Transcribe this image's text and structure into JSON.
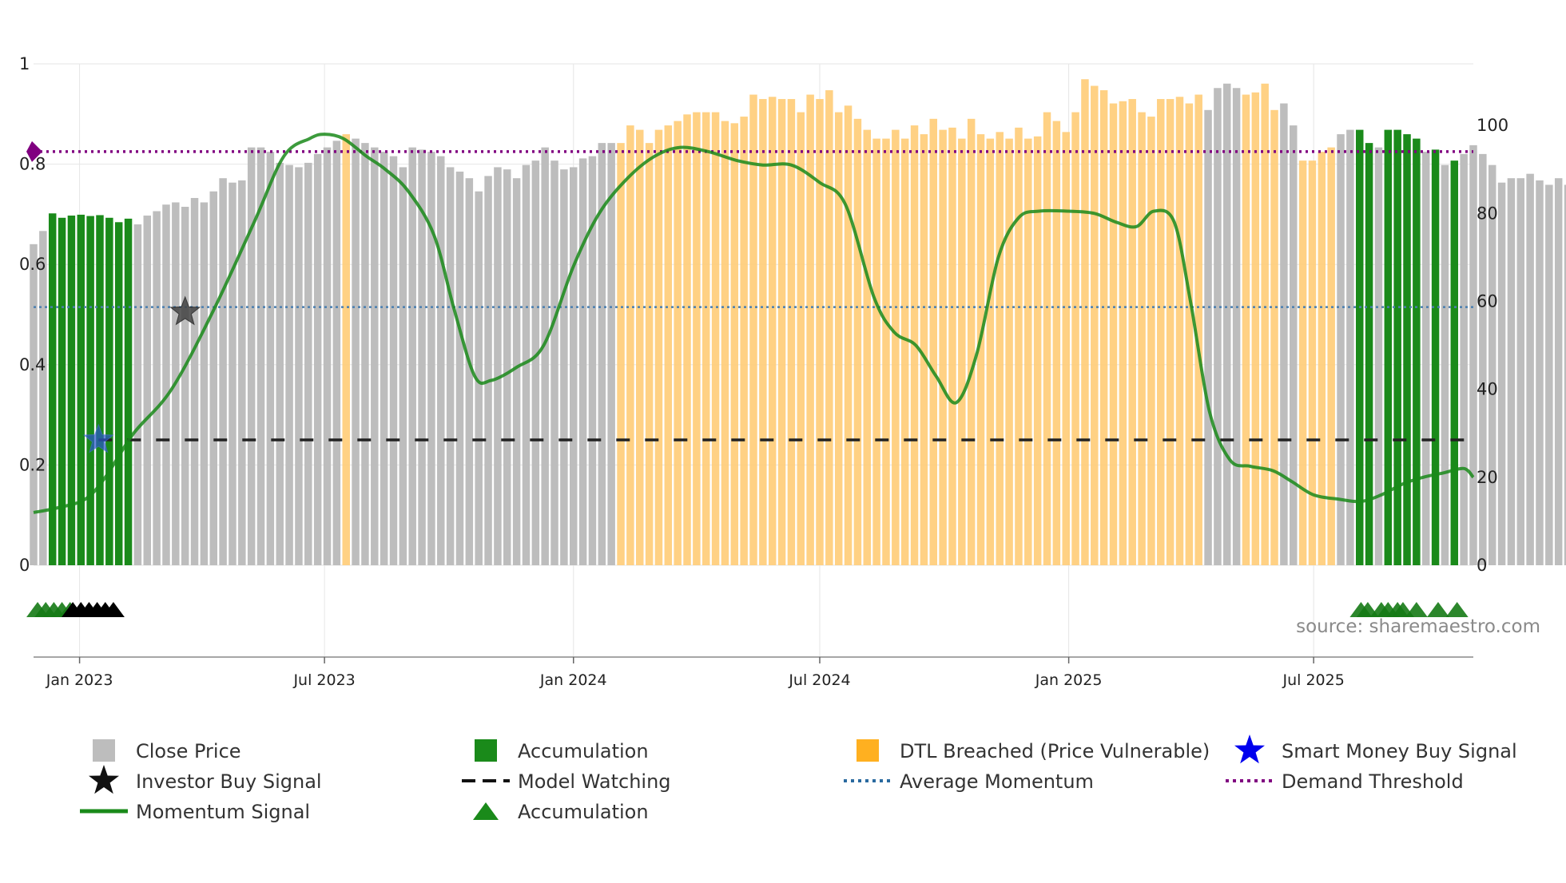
{
  "chart_data": {
    "type": "bar",
    "source_label": "source: sharemaestro.com",
    "left_axis": {
      "ylim": [
        0,
        1
      ],
      "ticks": [
        0,
        0.2,
        0.4,
        0.6,
        0.8,
        1
      ],
      "tick_labels": [
        "0",
        "0.2",
        "0.4",
        "0.6",
        "0.8",
        "1"
      ]
    },
    "right_axis": {
      "ylim": [
        0,
        110
      ],
      "ticks": [
        0,
        20,
        40,
        60,
        80,
        100
      ],
      "tick_labels": [
        "0",
        "20",
        "40",
        "60",
        "80",
        "100"
      ]
    },
    "x_axis": {
      "start": "2022-11-28",
      "end": "2025-10-27",
      "ticks": [
        {
          "date": "2023-01-01",
          "label": "Jan 2023"
        },
        {
          "date": "2023-07-01",
          "label": "Jul 2023"
        },
        {
          "date": "2024-01-01",
          "label": "Jan 2024"
        },
        {
          "date": "2024-07-01",
          "label": "Jul 2024"
        },
        {
          "date": "2025-01-01",
          "label": "Jan 2025"
        },
        {
          "date": "2025-07-01",
          "label": "Jul 2025"
        }
      ]
    },
    "bars": {
      "first_week": "2022-11-28",
      "interval_days": 7,
      "values": [
        73,
        76,
        80,
        79,
        79.5,
        79.7,
        79.4,
        79.6,
        79,
        78,
        78.8,
        77.5,
        79.5,
        80.5,
        82,
        82.5,
        81.5,
        83.5,
        82.5,
        85,
        88,
        87,
        87.5,
        95,
        95,
        94,
        91.5,
        91,
        90.5,
        91.5,
        93.5,
        95,
        96.5,
        98,
        97,
        96,
        95,
        94,
        93,
        90.5,
        95,
        94.5,
        94,
        93,
        90.5,
        89.5,
        88,
        85,
        88.5,
        90.5,
        90,
        88,
        91,
        92,
        95,
        92,
        90,
        90.5,
        92.5,
        93,
        96,
        96,
        96,
        100,
        99,
        96,
        99,
        100,
        101,
        102.5,
        103,
        103,
        103,
        101,
        100.5,
        102,
        107,
        106,
        106.5,
        106,
        106,
        103,
        107,
        106,
        108,
        103,
        104.5,
        101.5,
        99,
        97,
        97,
        99,
        97,
        100,
        98,
        101.5,
        99,
        99.5,
        97,
        101.5,
        98,
        97,
        98.5,
        97,
        99.5,
        97,
        97.5,
        103,
        101,
        98.5,
        103,
        110.5,
        109,
        108,
        105,
        105.5,
        106,
        103,
        102,
        106,
        106,
        106.5,
        105,
        107,
        103.5,
        108.5,
        109.5,
        108.5,
        107,
        107.5,
        109.5,
        103.5,
        105,
        100,
        92,
        92,
        94,
        95,
        98,
        99,
        99,
        96,
        95,
        99,
        99,
        98,
        97,
        94,
        94.5,
        91,
        92,
        93.5,
        95.5,
        93.5,
        91,
        87,
        88,
        88,
        89,
        87.5,
        86.5,
        88,
        86.5
      ],
      "colors_runs": [
        {
          "start": 0,
          "end": 1,
          "category": "close"
        },
        {
          "start": 2,
          "end": 10,
          "category": "accumulation"
        },
        {
          "start": 11,
          "end": 32,
          "category": "close"
        },
        {
          "start": 33,
          "end": 33,
          "category": "dtl"
        },
        {
          "start": 34,
          "end": 61,
          "category": "close"
        },
        {
          "start": 62,
          "end": 123,
          "category": "dtl"
        },
        {
          "start": 124,
          "end": 127,
          "category": "close"
        },
        {
          "start": 128,
          "end": 131,
          "category": "dtl"
        },
        {
          "start": 132,
          "end": 133,
          "category": "close"
        },
        {
          "start": 134,
          "end": 137,
          "category": "dtl"
        },
        {
          "start": 138,
          "end": 139,
          "category": "close"
        },
        {
          "start": 140,
          "end": 141,
          "category": "accumulation"
        },
        {
          "start": 142,
          "end": 142,
          "category": "close"
        },
        {
          "start": 143,
          "end": 146,
          "category": "accumulation"
        },
        {
          "start": 147,
          "end": 147,
          "category": "close"
        },
        {
          "start": 148,
          "end": 148,
          "category": "accumulation"
        },
        {
          "start": 149,
          "end": 149,
          "category": "close"
        },
        {
          "start": 150,
          "end": 150,
          "category": "accumulation"
        },
        {
          "start": 151,
          "end": 151,
          "category": "close"
        }
      ]
    },
    "momentum_signal": {
      "dates": [
        "2022-11-28",
        "2022-12-15",
        "2023-01-05",
        "2023-01-20",
        "2023-02-10",
        "2023-03-10",
        "2023-04-10",
        "2023-05-10",
        "2023-06-01",
        "2023-06-20",
        "2023-07-01",
        "2023-07-15",
        "2023-08-01",
        "2023-08-15",
        "2023-09-01",
        "2023-09-20",
        "2023-10-05",
        "2023-10-20",
        "2023-11-01",
        "2023-11-20",
        "2023-12-10",
        "2024-01-01",
        "2024-01-20",
        "2024-02-10",
        "2024-03-01",
        "2024-03-20",
        "2024-04-10",
        "2024-05-01",
        "2024-05-20",
        "2024-06-10",
        "2024-07-01",
        "2024-07-20",
        "2024-08-10",
        "2024-08-25",
        "2024-09-10",
        "2024-09-25",
        "2024-10-10",
        "2024-10-25",
        "2024-11-10",
        "2024-11-25",
        "2024-12-10",
        "2025-01-01",
        "2025-01-20",
        "2025-02-05",
        "2025-02-20",
        "2025-03-05",
        "2025-03-20",
        "2025-04-01",
        "2025-04-15",
        "2025-04-30",
        "2025-05-15",
        "2025-06-01",
        "2025-06-15",
        "2025-07-01",
        "2025-07-20",
        "2025-08-05",
        "2025-08-20",
        "2025-09-05",
        "2025-09-20",
        "2025-10-05",
        "2025-10-20",
        "2025-10-27"
      ],
      "values": [
        12,
        13,
        15,
        20,
        30,
        40,
        58,
        78,
        93,
        97,
        98,
        97,
        93,
        90,
        85,
        75,
        58,
        43,
        42,
        45,
        50,
        68,
        80,
        88,
        93,
        95,
        94,
        92,
        91,
        91,
        87,
        82,
        61,
        53,
        50,
        43,
        37,
        48,
        70,
        79,
        80.5,
        80.5,
        80,
        78,
        77,
        80.5,
        78,
        60,
        35,
        24,
        22.5,
        21.5,
        19,
        16,
        15,
        14.5,
        16,
        18.5,
        20,
        21,
        22,
        20
      ],
      "color": "#1a8a1a"
    },
    "reference_lines": {
      "demand_threshold": {
        "value": 0.825,
        "axis": "left",
        "color": "#800080"
      },
      "average_momentum": {
        "value": 0.515,
        "axis": "left",
        "color": "#4a7fb0"
      },
      "model_watching": {
        "value": 0.25,
        "axis": "left",
        "start": "2023-01-15",
        "color": "#222222"
      }
    },
    "markers": {
      "investor_buy_signal": [
        {
          "date": "2023-03-20",
          "value": 0.505
        }
      ],
      "smart_money_buy_signal": [
        {
          "date": "2023-01-15",
          "value": 0.25
        }
      ],
      "demand_diamond": [
        {
          "date": "2022-11-28",
          "value": 0.825
        }
      ],
      "accumulation_triangles": [
        "2022-12-01",
        "2022-12-07",
        "2022-12-13",
        "2022-12-19",
        "2022-12-25",
        "2025-08-05",
        "2025-08-10",
        "2025-08-20",
        "2025-08-25",
        "2025-09-01",
        "2025-09-05",
        "2025-09-15",
        "2025-10-01",
        "2025-10-15"
      ],
      "black_triangles": [
        "2022-12-27",
        "2023-01-02",
        "2023-01-08",
        "2023-01-14",
        "2023-01-20",
        "2023-01-26"
      ]
    },
    "colors": {
      "close": "#bdbdbd",
      "accumulation": "#1a8a1a",
      "dtl": "#ffcc77",
      "accumulation_triangle": "#157a15"
    },
    "legend": [
      {
        "label": "Close Price",
        "symbol": "square",
        "color": "#bdbdbd"
      },
      {
        "label": "Accumulation",
        "symbol": "square",
        "color": "#1a8a1a"
      },
      {
        "label": "DTL Breached (Price Vulnerable)",
        "symbol": "square",
        "color": "#ffb020"
      },
      {
        "label": "Smart Money Buy Signal",
        "symbol": "star",
        "color": "#0000ee"
      },
      {
        "label": "Investor Buy Signal",
        "symbol": "star",
        "color": "#111111"
      },
      {
        "label": "Model Watching",
        "symbol": "dash",
        "color": "#111111"
      },
      {
        "label": "Average Momentum",
        "symbol": "dot",
        "color": "#2a6aa0"
      },
      {
        "label": "Demand Threshold",
        "symbol": "dot",
        "color": "#800080"
      },
      {
        "label": "Momentum Signal",
        "symbol": "line",
        "color": "#1a8a1a"
      },
      {
        "label": "Accumulation",
        "symbol": "triangle",
        "color": "#1a8a1a"
      }
    ]
  }
}
